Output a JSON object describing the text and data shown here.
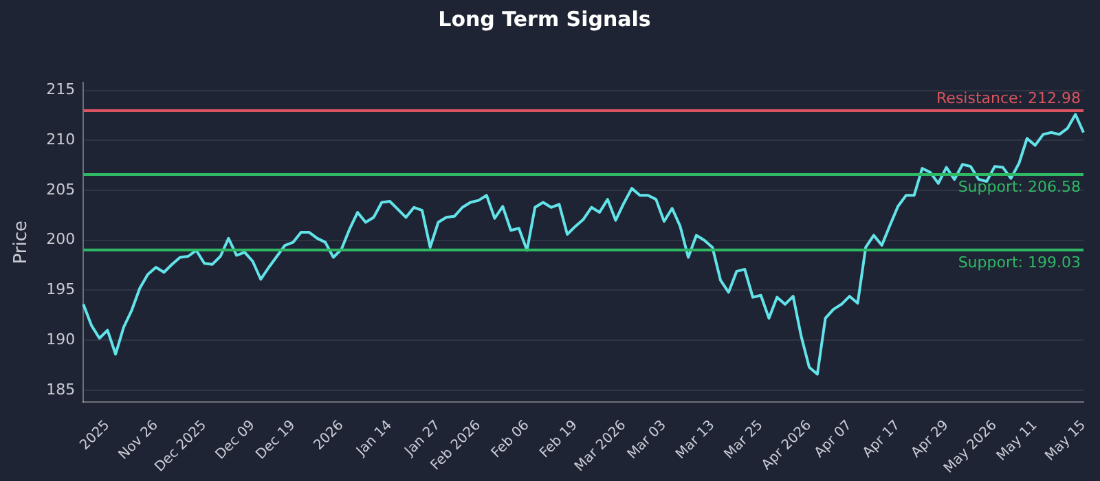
{
  "chart_data": {
    "type": "line",
    "title": "Long Term Signals",
    "ylabel": "Price",
    "categories": [
      null,
      null,
      null,
      "2025",
      null,
      null,
      null,
      null,
      null,
      "Nov 26",
      null,
      null,
      null,
      null,
      null,
      "Dec 2025",
      null,
      null,
      null,
      null,
      null,
      "Dec 09",
      null,
      null,
      null,
      null,
      "Dec 19",
      null,
      null,
      null,
      null,
      null,
      "2026",
      null,
      null,
      null,
      null,
      null,
      "Jan 14",
      null,
      null,
      null,
      null,
      null,
      "Jan 27",
      null,
      null,
      null,
      null,
      "Feb 2026",
      null,
      null,
      null,
      null,
      null,
      "Feb 06",
      null,
      null,
      null,
      null,
      null,
      "Feb 19",
      null,
      null,
      null,
      null,
      null,
      "Mar 2026",
      null,
      null,
      null,
      null,
      "Mar 03",
      null,
      null,
      null,
      null,
      null,
      "Mar 13",
      null,
      null,
      null,
      null,
      null,
      "Mar 25",
      null,
      null,
      null,
      null,
      null,
      "Apr 2026",
      null,
      null,
      null,
      null,
      "Apr 07",
      null,
      null,
      null,
      null,
      null,
      "Apr 17",
      null,
      null,
      null,
      null,
      null,
      "Apr 29",
      null,
      null,
      null,
      null,
      null,
      "May 2026",
      null,
      null,
      null,
      null,
      "May 11",
      null,
      null,
      null,
      null,
      null,
      "May 15"
    ],
    "series": [
      {
        "color": "#62e3ea",
        "values": [
          193.6,
          191.5,
          190.2,
          191.0,
          188.6,
          191.3,
          193.0,
          195.2,
          196.6,
          197.3,
          196.8,
          197.6,
          198.3,
          198.4,
          199.0,
          197.7,
          197.6,
          198.4,
          200.2,
          198.5,
          198.8,
          197.9,
          196.1,
          197.3,
          198.4,
          199.5,
          199.8,
          200.8,
          200.8,
          200.2,
          199.8,
          198.3,
          199.1,
          201.1,
          202.8,
          201.8,
          202.3,
          203.8,
          203.9,
          203.1,
          202.3,
          203.3,
          203.0,
          199.3,
          201.8,
          202.3,
          202.4,
          203.3,
          203.8,
          204.0,
          204.5,
          202.2,
          203.4,
          201.0,
          201.2,
          199.0,
          203.3,
          203.8,
          203.3,
          203.6,
          200.6,
          201.4,
          202.1,
          203.3,
          202.8,
          204.1,
          202.0,
          203.7,
          205.2,
          204.5,
          204.5,
          204.1,
          201.9,
          203.2,
          201.4,
          198.3,
          200.5,
          200.0,
          199.3,
          196.0,
          194.8,
          196.9,
          197.1,
          194.3,
          194.5,
          192.2,
          194.3,
          193.6,
          194.4,
          190.4,
          187.3,
          186.6,
          192.2,
          193.1,
          193.6,
          194.4,
          193.7,
          199.3,
          200.5,
          199.5,
          201.5,
          203.4,
          204.5,
          204.5,
          207.2,
          206.8,
          205.7,
          207.3,
          206.1,
          207.6,
          207.4,
          206.1,
          205.9,
          207.4,
          207.3,
          206.2,
          207.7,
          210.2,
          209.5,
          210.6,
          210.8,
          210.6,
          211.2,
          212.6,
          210.8
        ]
      }
    ],
    "ylim": [
      183.8,
      215.8
    ],
    "yticks": [
      185,
      190,
      195,
      200,
      205,
      210,
      215
    ],
    "grid": "y",
    "legend": false,
    "marker": "none",
    "line_style": "solid",
    "ref_lines": [
      {
        "axis": "y",
        "value": 212.98,
        "label": "Resistance: 212.98",
        "color": "#d9545e"
      },
      {
        "axis": "y",
        "value": 206.58,
        "label": "Support: 206.58",
        "color": "#2fb865"
      },
      {
        "axis": "y",
        "value": 199.03,
        "label": "Support: 199.03",
        "color": "#2fb865"
      }
    ]
  }
}
